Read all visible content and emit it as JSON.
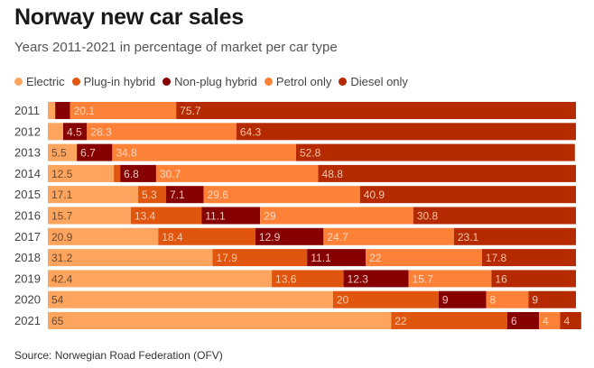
{
  "chart_data": {
    "type": "bar",
    "orientation": "horizontal",
    "stacked": true,
    "title": "Norway new car sales",
    "subtitle": "Years 2011-2021 in percentage of market per car type",
    "source": "Source: Norwegian Road Federation (OFV)",
    "xlim": [
      0,
      100
    ],
    "grid": false,
    "legend_position": "top-left",
    "categories": [
      "2011",
      "2012",
      "2013",
      "2014",
      "2015",
      "2016",
      "2017",
      "2018",
      "2019",
      "2020",
      "2021"
    ],
    "series": [
      {
        "name": "Electric",
        "color": "#fda45e",
        "label_color": "#6b4a2e",
        "values": [
          1.4,
          2.9,
          5.5,
          12.5,
          17.1,
          15.7,
          20.9,
          31.2,
          42.4,
          54,
          65
        ],
        "labels": [
          "",
          "",
          "5.5",
          "12.5",
          "17.1",
          "15.7",
          "20.9",
          "31.2",
          "42.4",
          "54",
          "65"
        ]
      },
      {
        "name": "Plug-in hybrid",
        "color": "#e0560f",
        "label_color": "#f6c9a8",
        "values": [
          0,
          0,
          0,
          1.2,
          5.3,
          13.4,
          18.4,
          17.9,
          13.6,
          20,
          22
        ],
        "labels": [
          "",
          "",
          "",
          "",
          "5.3",
          "13.4",
          "18.4",
          "17.9",
          "13.6",
          "20",
          "22"
        ]
      },
      {
        "name": "Non-plug hybrid",
        "color": "#860000",
        "label_color": "#f0c4c0",
        "values": [
          2.8,
          4.5,
          6.7,
          6.8,
          7.1,
          11.1,
          12.9,
          11.1,
          12.3,
          9,
          6
        ],
        "labels": [
          "",
          "4.5",
          "6.7",
          "6.8",
          "7.1",
          "11.1",
          "12.9",
          "11.1",
          "12.3",
          "9",
          "6"
        ]
      },
      {
        "name": "Petrol only",
        "color": "#fe8138",
        "label_color": "#fbd9c2",
        "values": [
          20.1,
          28.3,
          34.8,
          30.7,
          29.6,
          29,
          24.7,
          22,
          15.7,
          8,
          4
        ],
        "labels": [
          "20.1",
          "28.3",
          "34.8",
          "30.7",
          "29.6",
          "29",
          "24.7",
          "22",
          "15.7",
          "8",
          "4"
        ]
      },
      {
        "name": "Diesel only",
        "color": "#b52a00",
        "label_color": "#f3c5ad",
        "values": [
          75.7,
          64.3,
          52.8,
          48.8,
          40.9,
          30.8,
          23.1,
          17.8,
          16,
          9,
          4
        ],
        "labels": [
          "75.7",
          "64.3",
          "52.8",
          "48.8",
          "40.9",
          "30.8",
          "23.1",
          "17.8",
          "16",
          "9",
          "4"
        ]
      }
    ]
  }
}
